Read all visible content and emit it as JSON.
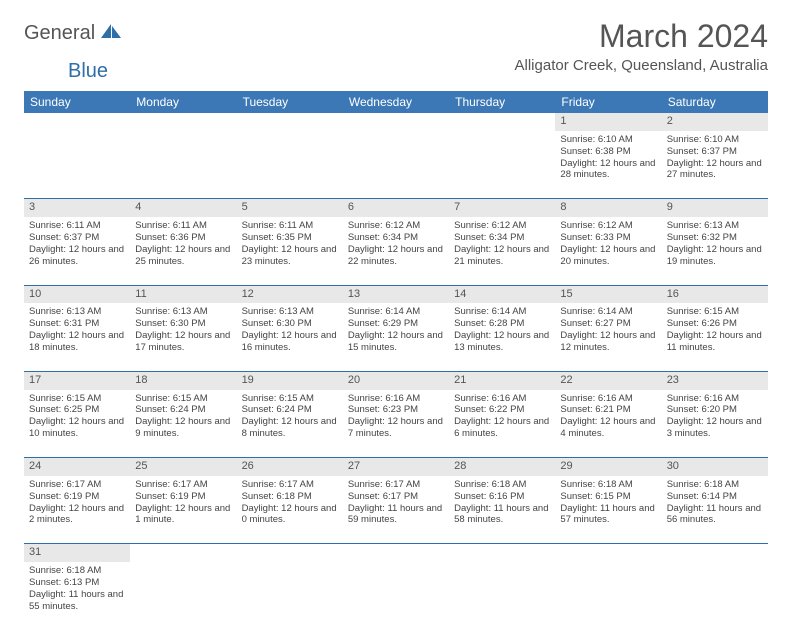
{
  "brand": {
    "part1": "General",
    "part2": "Blue"
  },
  "title": "March 2024",
  "location": "Alligator Creek, Queensland, Australia",
  "colors": {
    "header_bg": "#3b78b5",
    "header_text": "#ffffff",
    "daynum_bg": "#e8e8e8",
    "border": "#2f6fa8",
    "body_text": "#444444",
    "title_text": "#555555",
    "brand_gray": "#555555",
    "brand_blue": "#2f6fa8"
  },
  "weekdays": [
    "Sunday",
    "Monday",
    "Tuesday",
    "Wednesday",
    "Thursday",
    "Friday",
    "Saturday"
  ],
  "weeks": [
    {
      "nums": [
        "",
        "",
        "",
        "",
        "",
        "1",
        "2"
      ],
      "cells": [
        null,
        null,
        null,
        null,
        null,
        {
          "sunrise": "Sunrise: 6:10 AM",
          "sunset": "Sunset: 6:38 PM",
          "daylight": "Daylight: 12 hours and 28 minutes."
        },
        {
          "sunrise": "Sunrise: 6:10 AM",
          "sunset": "Sunset: 6:37 PM",
          "daylight": "Daylight: 12 hours and 27 minutes."
        }
      ]
    },
    {
      "nums": [
        "3",
        "4",
        "5",
        "6",
        "7",
        "8",
        "9"
      ],
      "cells": [
        {
          "sunrise": "Sunrise: 6:11 AM",
          "sunset": "Sunset: 6:37 PM",
          "daylight": "Daylight: 12 hours and 26 minutes."
        },
        {
          "sunrise": "Sunrise: 6:11 AM",
          "sunset": "Sunset: 6:36 PM",
          "daylight": "Daylight: 12 hours and 25 minutes."
        },
        {
          "sunrise": "Sunrise: 6:11 AM",
          "sunset": "Sunset: 6:35 PM",
          "daylight": "Daylight: 12 hours and 23 minutes."
        },
        {
          "sunrise": "Sunrise: 6:12 AM",
          "sunset": "Sunset: 6:34 PM",
          "daylight": "Daylight: 12 hours and 22 minutes."
        },
        {
          "sunrise": "Sunrise: 6:12 AM",
          "sunset": "Sunset: 6:34 PM",
          "daylight": "Daylight: 12 hours and 21 minutes."
        },
        {
          "sunrise": "Sunrise: 6:12 AM",
          "sunset": "Sunset: 6:33 PM",
          "daylight": "Daylight: 12 hours and 20 minutes."
        },
        {
          "sunrise": "Sunrise: 6:13 AM",
          "sunset": "Sunset: 6:32 PM",
          "daylight": "Daylight: 12 hours and 19 minutes."
        }
      ]
    },
    {
      "nums": [
        "10",
        "11",
        "12",
        "13",
        "14",
        "15",
        "16"
      ],
      "cells": [
        {
          "sunrise": "Sunrise: 6:13 AM",
          "sunset": "Sunset: 6:31 PM",
          "daylight": "Daylight: 12 hours and 18 minutes."
        },
        {
          "sunrise": "Sunrise: 6:13 AM",
          "sunset": "Sunset: 6:30 PM",
          "daylight": "Daylight: 12 hours and 17 minutes."
        },
        {
          "sunrise": "Sunrise: 6:13 AM",
          "sunset": "Sunset: 6:30 PM",
          "daylight": "Daylight: 12 hours and 16 minutes."
        },
        {
          "sunrise": "Sunrise: 6:14 AM",
          "sunset": "Sunset: 6:29 PM",
          "daylight": "Daylight: 12 hours and 15 minutes."
        },
        {
          "sunrise": "Sunrise: 6:14 AM",
          "sunset": "Sunset: 6:28 PM",
          "daylight": "Daylight: 12 hours and 13 minutes."
        },
        {
          "sunrise": "Sunrise: 6:14 AM",
          "sunset": "Sunset: 6:27 PM",
          "daylight": "Daylight: 12 hours and 12 minutes."
        },
        {
          "sunrise": "Sunrise: 6:15 AM",
          "sunset": "Sunset: 6:26 PM",
          "daylight": "Daylight: 12 hours and 11 minutes."
        }
      ]
    },
    {
      "nums": [
        "17",
        "18",
        "19",
        "20",
        "21",
        "22",
        "23"
      ],
      "cells": [
        {
          "sunrise": "Sunrise: 6:15 AM",
          "sunset": "Sunset: 6:25 PM",
          "daylight": "Daylight: 12 hours and 10 minutes."
        },
        {
          "sunrise": "Sunrise: 6:15 AM",
          "sunset": "Sunset: 6:24 PM",
          "daylight": "Daylight: 12 hours and 9 minutes."
        },
        {
          "sunrise": "Sunrise: 6:15 AM",
          "sunset": "Sunset: 6:24 PM",
          "daylight": "Daylight: 12 hours and 8 minutes."
        },
        {
          "sunrise": "Sunrise: 6:16 AM",
          "sunset": "Sunset: 6:23 PM",
          "daylight": "Daylight: 12 hours and 7 minutes."
        },
        {
          "sunrise": "Sunrise: 6:16 AM",
          "sunset": "Sunset: 6:22 PM",
          "daylight": "Daylight: 12 hours and 6 minutes."
        },
        {
          "sunrise": "Sunrise: 6:16 AM",
          "sunset": "Sunset: 6:21 PM",
          "daylight": "Daylight: 12 hours and 4 minutes."
        },
        {
          "sunrise": "Sunrise: 6:16 AM",
          "sunset": "Sunset: 6:20 PM",
          "daylight": "Daylight: 12 hours and 3 minutes."
        }
      ]
    },
    {
      "nums": [
        "24",
        "25",
        "26",
        "27",
        "28",
        "29",
        "30"
      ],
      "cells": [
        {
          "sunrise": "Sunrise: 6:17 AM",
          "sunset": "Sunset: 6:19 PM",
          "daylight": "Daylight: 12 hours and 2 minutes."
        },
        {
          "sunrise": "Sunrise: 6:17 AM",
          "sunset": "Sunset: 6:19 PM",
          "daylight": "Daylight: 12 hours and 1 minute."
        },
        {
          "sunrise": "Sunrise: 6:17 AM",
          "sunset": "Sunset: 6:18 PM",
          "daylight": "Daylight: 12 hours and 0 minutes."
        },
        {
          "sunrise": "Sunrise: 6:17 AM",
          "sunset": "Sunset: 6:17 PM",
          "daylight": "Daylight: 11 hours and 59 minutes."
        },
        {
          "sunrise": "Sunrise: 6:18 AM",
          "sunset": "Sunset: 6:16 PM",
          "daylight": "Daylight: 11 hours and 58 minutes."
        },
        {
          "sunrise": "Sunrise: 6:18 AM",
          "sunset": "Sunset: 6:15 PM",
          "daylight": "Daylight: 11 hours and 57 minutes."
        },
        {
          "sunrise": "Sunrise: 6:18 AM",
          "sunset": "Sunset: 6:14 PM",
          "daylight": "Daylight: 11 hours and 56 minutes."
        }
      ]
    },
    {
      "nums": [
        "31",
        "",
        "",
        "",
        "",
        "",
        ""
      ],
      "cells": [
        {
          "sunrise": "Sunrise: 6:18 AM",
          "sunset": "Sunset: 6:13 PM",
          "daylight": "Daylight: 11 hours and 55 minutes."
        },
        null,
        null,
        null,
        null,
        null,
        null
      ]
    }
  ]
}
